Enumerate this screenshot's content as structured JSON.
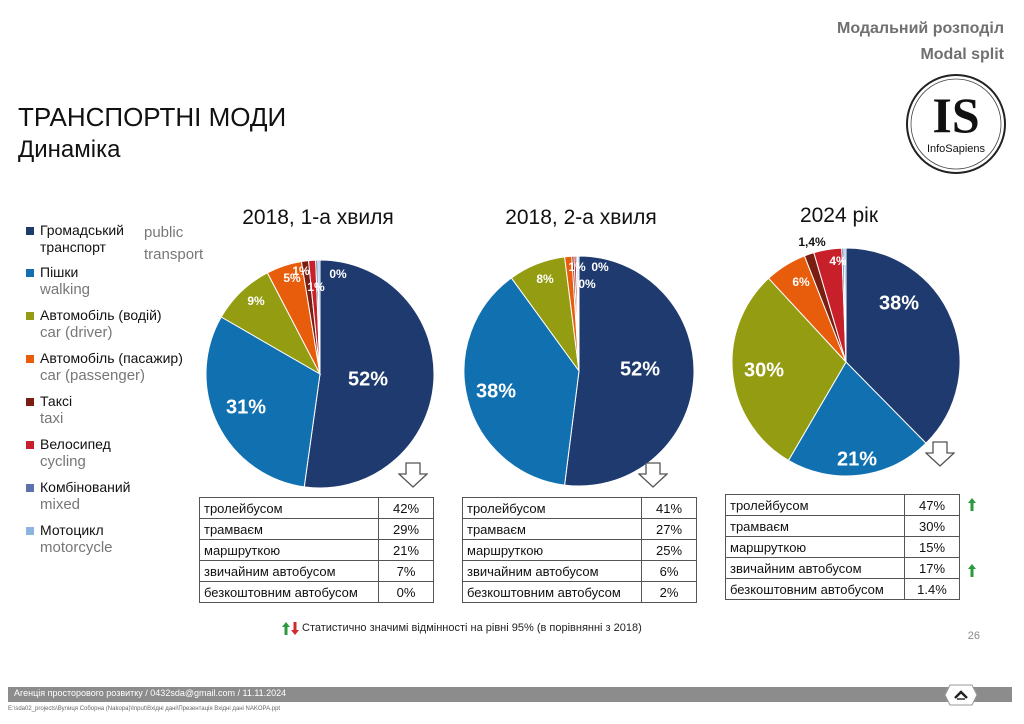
{
  "header": {
    "ua": "Модальний розподіл",
    "en": "Modal split"
  },
  "title": "ТРАНСПОРТНІ МОДИ",
  "subtitle": "Динаміка",
  "logo": {
    "letters": "IS",
    "text": "InfoSapiens"
  },
  "legend": [
    {
      "ua": "Громадський транспорт",
      "en": "public transport",
      "color": "#1f3a6e"
    },
    {
      "ua": "Пішки",
      "en": "walking",
      "color": "#1170b0"
    },
    {
      "ua": "Автомобіль (водій)",
      "en": "car (driver)",
      "color": "#949c11"
    },
    {
      "ua": "Автомобіль (пасажир)",
      "en": "car (passenger)",
      "color": "#e85d0c"
    },
    {
      "ua": "Таксі",
      "en": "taxi",
      "color": "#7a1e12"
    },
    {
      "ua": "Велосипед",
      "en": "cycling",
      "color": "#c8202a"
    },
    {
      "ua": "Комбінований",
      "en": "mixed",
      "color": "#5a72a8"
    },
    {
      "ua": "Мотоцикл",
      "en": "motorcycle",
      "color": "#8bb5de"
    }
  ],
  "chart_data": [
    {
      "type": "pie",
      "title": "2018, 1-а хвиля",
      "categories": [
        "Громадський транспорт",
        "Пішки",
        "Автомобіль (водій)",
        "Автомобіль (пасажир)",
        "Таксі",
        "Велосипед",
        "Комбінований",
        "Мотоцикл"
      ],
      "values": [
        52,
        31,
        9,
        5,
        1,
        1,
        0.3,
        0.3
      ],
      "labels": [
        "52%",
        "31%",
        "9%",
        "5%",
        "1%",
        "1%",
        "0%",
        ""
      ],
      "table": [
        {
          "label": "тролейбусом",
          "value": "42%",
          "sig": false
        },
        {
          "label": "трамваєм",
          "value": "29%",
          "sig": false
        },
        {
          "label": "маршруткою",
          "value": "21%",
          "sig": false
        },
        {
          "label": "звичайним автобусом",
          "value": "7%",
          "sig": false
        },
        {
          "label": "безкоштовним автобусом",
          "value": "0%",
          "sig": false
        }
      ]
    },
    {
      "type": "pie",
      "title": "2018, 2-а хвиля",
      "categories": [
        "Громадський транспорт",
        "Пішки",
        "Автомобіль (водій)",
        "Автомобіль (пасажир)",
        "Таксі",
        "Велосипед",
        "Комбінований",
        "Мотоцикл"
      ],
      "values": [
        52,
        38,
        8,
        1,
        0.3,
        0.3,
        0.2,
        0.2
      ],
      "labels": [
        "52%",
        "38%",
        "8%",
        "1%",
        "0%",
        "0%",
        "",
        ""
      ],
      "table": [
        {
          "label": "тролейбусом",
          "value": "41%",
          "sig": false
        },
        {
          "label": "трамваєм",
          "value": "27%",
          "sig": false
        },
        {
          "label": "маршруткою",
          "value": "25%",
          "sig": false
        },
        {
          "label": "звичайним автобусом",
          "value": "6%",
          "sig": false
        },
        {
          "label": "безкоштовним автобусом",
          "value": "2%",
          "sig": false
        }
      ]
    },
    {
      "type": "pie",
      "title": "2024 рік",
      "categories": [
        "Громадський транспорт",
        "Пішки",
        "Автомобіль (водій)",
        "Автомобіль (пасажир)",
        "Таксі",
        "Велосипед",
        "Комбінований",
        "Мотоцикл"
      ],
      "values": [
        38,
        21,
        30,
        6,
        1.4,
        4,
        0.3,
        0.3
      ],
      "labels": [
        "38%",
        "21%",
        "30%",
        "6%",
        "1,4%",
        "4%",
        "",
        ""
      ],
      "table": [
        {
          "label": "тролейбусом",
          "value": "47%",
          "sig": true
        },
        {
          "label": "трамваєм",
          "value": "30%",
          "sig": false
        },
        {
          "label": "маршруткою",
          "value": "15%",
          "sig": false
        },
        {
          "label": "звичайним автобусом",
          "value": "17%",
          "sig": true
        },
        {
          "label": "безкоштовним автобусом",
          "value": "1.4%",
          "sig": false
        }
      ]
    }
  ],
  "note": "Статистично значимі відмінності на рівні 95% (в порівнянні з 2018)",
  "page_number": "26",
  "footer": "Агенція просторового розвитку / 0432sda@gmail.com / 11.11.2024",
  "footer_path": "E:\\sda02_projects\\Вулиця Соборна (Nakopa)\\Input\\Вхідні дані\\Презентація Вхідні дані NAKOPA.ppt"
}
